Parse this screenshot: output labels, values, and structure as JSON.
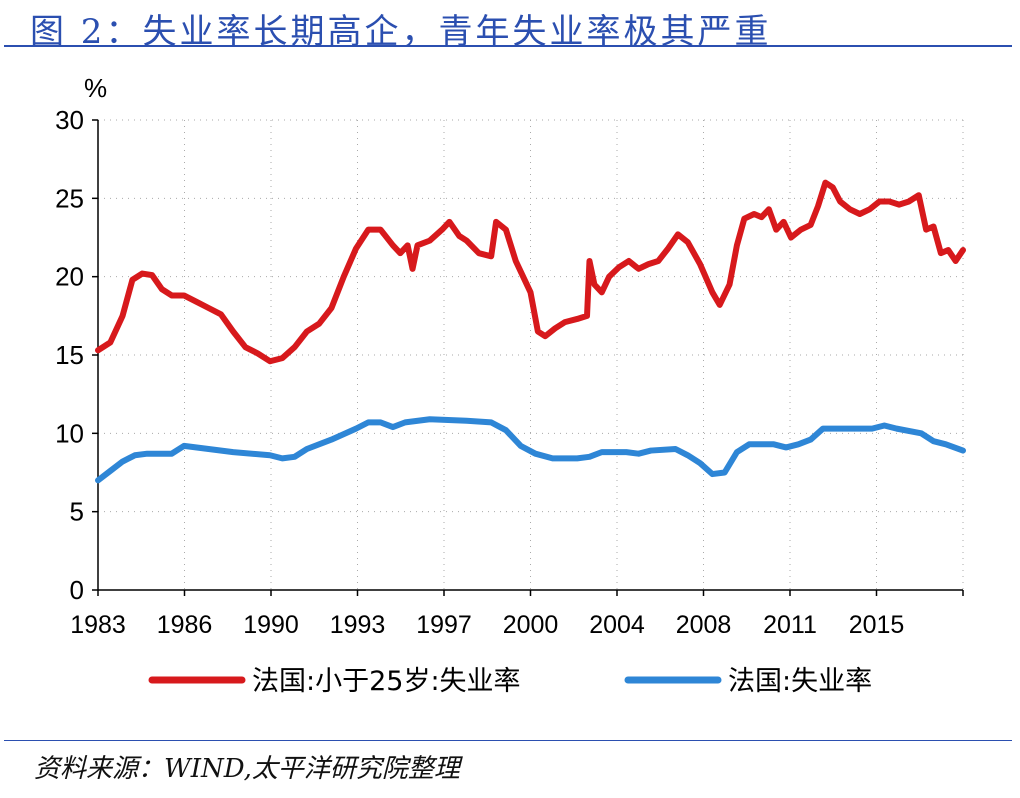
{
  "title": "图 2：失业率长期高企，青年失业率极其严重",
  "source": "资料来源：WIND,太平洋研究院整理",
  "chart_data": {
    "type": "line",
    "ylabel": "%",
    "ylim": [
      0,
      30
    ],
    "yticks": [
      0,
      5,
      10,
      15,
      20,
      25,
      30
    ],
    "xlim": [
      1983,
      2018.2
    ],
    "xtick_labels": [
      "1983",
      "1986",
      "1990",
      "1993",
      "1997",
      "2000",
      "2004",
      "2008",
      "2011",
      "2015"
    ],
    "grid": true,
    "legend": "bottom",
    "series": [
      {
        "name": "法国:小于25岁:失业率",
        "color": "#d7191c",
        "points": [
          [
            1983.0,
            15.3
          ],
          [
            1983.5,
            15.8
          ],
          [
            1984.0,
            17.5
          ],
          [
            1984.4,
            19.8
          ],
          [
            1984.8,
            20.2
          ],
          [
            1985.2,
            20.1
          ],
          [
            1985.6,
            19.2
          ],
          [
            1986.0,
            18.8
          ],
          [
            1986.5,
            18.8
          ],
          [
            1987.0,
            18.4
          ],
          [
            1987.5,
            18.0
          ],
          [
            1988.0,
            17.6
          ],
          [
            1988.5,
            16.5
          ],
          [
            1989.0,
            15.5
          ],
          [
            1989.5,
            15.1
          ],
          [
            1990.0,
            14.6
          ],
          [
            1990.5,
            14.8
          ],
          [
            1991.0,
            15.5
          ],
          [
            1991.5,
            16.5
          ],
          [
            1992.0,
            17.0
          ],
          [
            1992.5,
            18.0
          ],
          [
            1993.0,
            20.0
          ],
          [
            1993.5,
            21.8
          ],
          [
            1994.0,
            23.0
          ],
          [
            1994.5,
            23.0
          ],
          [
            1995.0,
            22.0
          ],
          [
            1995.3,
            21.5
          ],
          [
            1995.6,
            22.0
          ],
          [
            1995.8,
            20.5
          ],
          [
            1996.0,
            22.0
          ],
          [
            1996.5,
            22.3
          ],
          [
            1997.0,
            23.0
          ],
          [
            1997.3,
            23.5
          ],
          [
            1997.7,
            22.6
          ],
          [
            1998.0,
            22.3
          ],
          [
            1998.5,
            21.5
          ],
          [
            1999.0,
            21.3
          ],
          [
            1999.2,
            23.5
          ],
          [
            1999.6,
            23.0
          ],
          [
            2000.0,
            21.0
          ],
          [
            2000.6,
            19.0
          ],
          [
            2000.9,
            16.5
          ],
          [
            2001.2,
            16.2
          ],
          [
            2001.6,
            16.7
          ],
          [
            2002.0,
            17.1
          ],
          [
            2002.5,
            17.3
          ],
          [
            2002.9,
            17.5
          ],
          [
            2003.0,
            21.0
          ],
          [
            2003.2,
            19.5
          ],
          [
            2003.5,
            19.0
          ],
          [
            2003.8,
            20.0
          ],
          [
            2004.2,
            20.6
          ],
          [
            2004.6,
            21.0
          ],
          [
            2005.0,
            20.5
          ],
          [
            2005.4,
            20.8
          ],
          [
            2005.8,
            21.0
          ],
          [
            2006.2,
            21.8
          ],
          [
            2006.6,
            22.7
          ],
          [
            2007.0,
            22.2
          ],
          [
            2007.5,
            20.8
          ],
          [
            2008.0,
            19.0
          ],
          [
            2008.3,
            18.2
          ],
          [
            2008.7,
            19.5
          ],
          [
            2009.0,
            22.0
          ],
          [
            2009.3,
            23.7
          ],
          [
            2009.7,
            24.0
          ],
          [
            2010.0,
            23.8
          ],
          [
            2010.3,
            24.3
          ],
          [
            2010.6,
            23.0
          ],
          [
            2010.9,
            23.5
          ],
          [
            2011.2,
            22.5
          ],
          [
            2011.6,
            23.0
          ],
          [
            2012.0,
            23.3
          ],
          [
            2012.3,
            24.5
          ],
          [
            2012.6,
            26.0
          ],
          [
            2012.9,
            25.7
          ],
          [
            2013.2,
            24.8
          ],
          [
            2013.6,
            24.3
          ],
          [
            2014.0,
            24.0
          ],
          [
            2014.4,
            24.3
          ],
          [
            2014.8,
            24.8
          ],
          [
            2015.2,
            24.8
          ],
          [
            2015.6,
            24.6
          ],
          [
            2016.0,
            24.8
          ],
          [
            2016.4,
            25.2
          ],
          [
            2016.7,
            23.0
          ],
          [
            2017.0,
            23.2
          ],
          [
            2017.3,
            21.5
          ],
          [
            2017.6,
            21.7
          ],
          [
            2017.9,
            21.0
          ],
          [
            2018.2,
            21.7
          ]
        ]
      },
      {
        "name": "法国:失业率",
        "color": "#2e86d6",
        "points": [
          [
            1983.0,
            7.0
          ],
          [
            1983.5,
            7.6
          ],
          [
            1984.0,
            8.2
          ],
          [
            1984.5,
            8.6
          ],
          [
            1985.0,
            8.7
          ],
          [
            1986.0,
            8.7
          ],
          [
            1986.5,
            9.2
          ],
          [
            1987.5,
            9.0
          ],
          [
            1988.5,
            8.8
          ],
          [
            1990.0,
            8.6
          ],
          [
            1990.5,
            8.4
          ],
          [
            1991.0,
            8.5
          ],
          [
            1991.5,
            9.0
          ],
          [
            1992.5,
            9.6
          ],
          [
            1993.5,
            10.3
          ],
          [
            1994.0,
            10.7
          ],
          [
            1994.5,
            10.7
          ],
          [
            1995.0,
            10.4
          ],
          [
            1995.5,
            10.7
          ],
          [
            1996.5,
            10.9
          ],
          [
            1998.0,
            10.8
          ],
          [
            1999.0,
            10.7
          ],
          [
            1999.6,
            10.2
          ],
          [
            2000.2,
            9.2
          ],
          [
            2000.8,
            8.7
          ],
          [
            2001.5,
            8.4
          ],
          [
            2002.5,
            8.4
          ],
          [
            2003.0,
            8.5
          ],
          [
            2003.5,
            8.8
          ],
          [
            2004.5,
            8.8
          ],
          [
            2005.0,
            8.7
          ],
          [
            2005.5,
            8.9
          ],
          [
            2006.5,
            9.0
          ],
          [
            2007.0,
            8.6
          ],
          [
            2007.5,
            8.1
          ],
          [
            2008.0,
            7.4
          ],
          [
            2008.5,
            7.5
          ],
          [
            2009.0,
            8.8
          ],
          [
            2009.5,
            9.3
          ],
          [
            2010.5,
            9.3
          ],
          [
            2011.0,
            9.1
          ],
          [
            2011.5,
            9.3
          ],
          [
            2012.0,
            9.6
          ],
          [
            2012.5,
            10.3
          ],
          [
            2013.5,
            10.3
          ],
          [
            2014.5,
            10.3
          ],
          [
            2015.0,
            10.5
          ],
          [
            2015.5,
            10.3
          ],
          [
            2016.5,
            10.0
          ],
          [
            2017.0,
            9.5
          ],
          [
            2017.5,
            9.3
          ],
          [
            2018.2,
            8.9
          ]
        ]
      }
    ]
  }
}
